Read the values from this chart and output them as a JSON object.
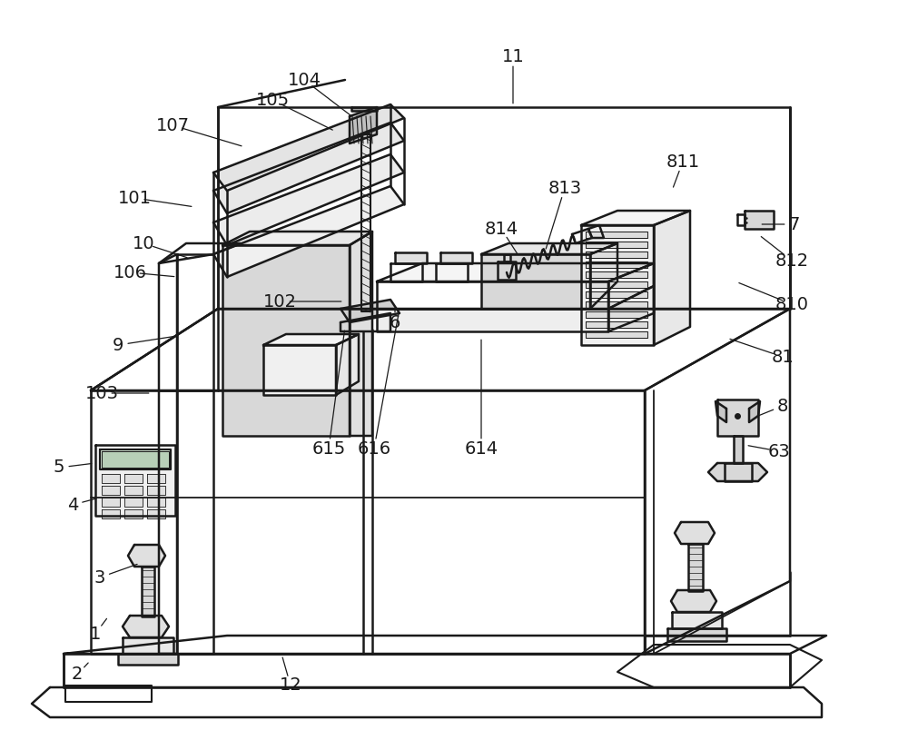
{
  "background_color": "#ffffff",
  "line_color": "#1a1a1a",
  "line_width": 1.8,
  "label_fontsize": 14,
  "fig_w": 10.0,
  "fig_h": 8.15,
  "dpi": 100,
  "labels": [
    [
      "1",
      105,
      698,
      120,
      678
    ],
    [
      "2",
      85,
      743,
      100,
      727
    ],
    [
      "3",
      110,
      636,
      155,
      620
    ],
    [
      "4",
      80,
      556,
      110,
      548
    ],
    [
      "5",
      65,
      515,
      105,
      510
    ],
    [
      "6",
      435,
      355,
      435,
      342
    ],
    [
      "7",
      875,
      247,
      835,
      247
    ],
    [
      "8",
      862,
      447,
      830,
      460
    ],
    [
      "9",
      130,
      380,
      195,
      370
    ],
    [
      "10",
      158,
      268,
      210,
      285
    ],
    [
      "11",
      565,
      62,
      565,
      118
    ],
    [
      "12",
      320,
      755,
      310,
      720
    ],
    [
      "63",
      858,
      497,
      820,
      490
    ],
    [
      "81",
      862,
      393,
      800,
      372
    ],
    [
      "101",
      148,
      218,
      215,
      228
    ],
    [
      "102",
      308,
      332,
      380,
      332
    ],
    [
      "103",
      112,
      433,
      168,
      433
    ],
    [
      "104",
      335,
      88,
      390,
      130
    ],
    [
      "105",
      300,
      110,
      370,
      145
    ],
    [
      "106",
      143,
      300,
      196,
      305
    ],
    [
      "107",
      190,
      138,
      270,
      162
    ],
    [
      "614",
      530,
      494,
      530,
      370
    ],
    [
      "615",
      362,
      494,
      380,
      360
    ],
    [
      "616",
      412,
      494,
      440,
      340
    ],
    [
      "810",
      872,
      335,
      810,
      310
    ],
    [
      "811",
      752,
      178,
      740,
      210
    ],
    [
      "812",
      872,
      287,
      835,
      258
    ],
    [
      "813",
      622,
      207,
      600,
      278
    ],
    [
      "814",
      552,
      252,
      572,
      283
    ]
  ]
}
